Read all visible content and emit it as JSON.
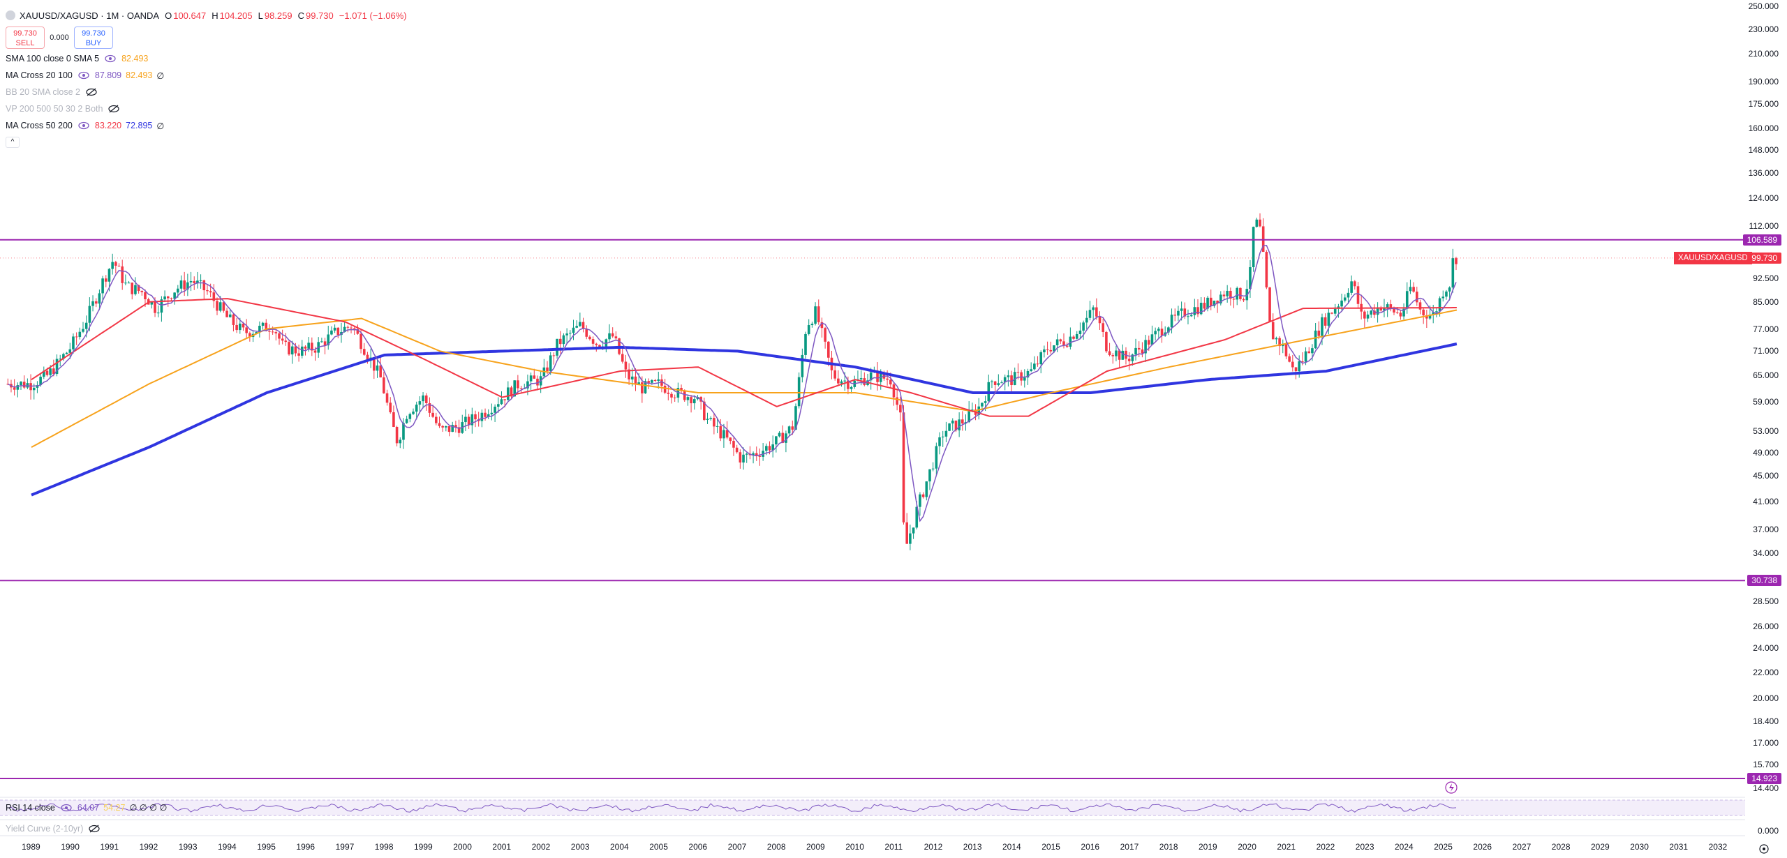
{
  "header": {
    "symbol": "XAUUSD/XAGUSD · 1M · OANDA",
    "o_label": "O",
    "o_value": "100.647",
    "h_label": "H",
    "h_value": "104.205",
    "l_label": "L",
    "l_value": "98.259",
    "c_label": "C",
    "c_value": "99.730",
    "change": "−1.071 (−1.06%)"
  },
  "trade": {
    "sell_price": "99.730",
    "sell_label": "SELL",
    "spread": "0.000",
    "buy_price": "99.730",
    "buy_label": "BUY"
  },
  "indicators": [
    {
      "name": "SMA 100 close 0 SMA 5",
      "v1": "82.493",
      "v1_color": "#f7a21b"
    },
    {
      "name": "MA Cross 20 100",
      "v1": "87.809",
      "v1_color": "#7e57c2",
      "v2": "82.493",
      "v2_color": "#f7a21b",
      "v3": "∅"
    },
    {
      "name": "BB 20 SMA close 2"
    },
    {
      "name": "VP 200 500 50 30 2 Both"
    },
    {
      "name": "MA Cross 50 200",
      "v1": "83.220",
      "v1_color": "#f23645",
      "v2": "72.895",
      "v2_color": "#2f35e0",
      "v3": "∅"
    }
  ],
  "rsi": {
    "name": "RSI 14 close",
    "v1": "64.07",
    "v2": "54.27",
    "rest": "∅ ∅ ∅ ∅"
  },
  "yield": {
    "name": "Yield Curve (2-10yr)"
  },
  "price_axis": [
    "250.000",
    "230.000",
    "210.000",
    "190.000",
    "175.000",
    "160.000",
    "148.000",
    "136.000",
    "124.000",
    "112.000",
    "92.500",
    "85.000",
    "77.000",
    "71.000",
    "65.000",
    "59.000",
    "53.000",
    "49.000",
    "45.000",
    "41.000",
    "37.000",
    "34.000",
    "28.500",
    "26.000",
    "24.000",
    "22.000",
    "20.000",
    "18.400",
    "17.000",
    "15.700",
    "14.400"
  ],
  "lower_axis": [
    "0.000"
  ],
  "time_axis": [
    "1989",
    "1990",
    "1991",
    "1992",
    "1993",
    "1994",
    "1995",
    "1996",
    "1997",
    "1998",
    "1999",
    "2000",
    "2001",
    "2002",
    "2003",
    "2004",
    "2005",
    "2006",
    "2007",
    "2008",
    "2009",
    "2010",
    "2011",
    "2012",
    "2013",
    "2014",
    "2015",
    "2016",
    "2017",
    "2018",
    "2019",
    "2020",
    "2021",
    "2022",
    "2023",
    "2024",
    "2025",
    "2026",
    "2027",
    "2028",
    "2029",
    "2030",
    "2031",
    "2032"
  ],
  "levels": [
    {
      "value": "106.589",
      "color": "#9c27b0"
    },
    {
      "value": "30.738",
      "color": "#9c27b0"
    },
    {
      "value": "14.923",
      "color": "#9c27b0"
    }
  ],
  "symbol_tag": {
    "label": "XAUUSD/XAGUSD",
    "value": "99.730",
    "color": "#f23645"
  },
  "colors": {
    "up": "#089981",
    "down": "#f23645",
    "sma5": "#7e57c2",
    "sma50": "#f23645",
    "sma100": "#f7a21b",
    "sma200": "#2f35e0",
    "hline": "#9c27b0"
  },
  "chart_data": {
    "type": "candlestick",
    "title": "XAUUSD/XAGUSD · 1M · OANDA",
    "ohlc_last": {
      "o": 100.647,
      "h": 104.205,
      "l": 98.259,
      "c": 99.73
    },
    "ylim": [
      14.4,
      250
    ],
    "y_scale": "log",
    "anchors": [
      [
        "1989-01",
        63
      ],
      [
        "1989-06",
        65
      ],
      [
        "1990-01",
        72
      ],
      [
        "1990-06",
        80
      ],
      [
        "1990-11",
        92
      ],
      [
        "1991-02",
        99
      ],
      [
        "1991-06",
        90
      ],
      [
        "1991-11",
        88
      ],
      [
        "1992-03",
        83
      ],
      [
        "1992-09",
        89
      ],
      [
        "1993-02",
        92
      ],
      [
        "1993-07",
        88
      ],
      [
        "1994-01",
        80
      ],
      [
        "1994-06",
        76
      ],
      [
        "1994-11",
        77
      ],
      [
        "1995-03",
        78
      ],
      [
        "1995-06",
        72
      ],
      [
        "1995-11",
        71
      ],
      [
        "1996-04",
        72
      ],
      [
        "1996-10",
        76
      ],
      [
        "1997-03",
        78
      ],
      [
        "1997-08",
        70
      ],
      [
        "1997-12",
        64
      ],
      [
        "1998-03",
        55
      ],
      [
        "1998-05",
        51
      ],
      [
        "1998-08",
        57
      ],
      [
        "1999-01",
        60
      ],
      [
        "1999-06",
        53
      ],
      [
        "1999-12",
        54
      ],
      [
        "2000-06",
        56
      ],
      [
        "2001-01",
        60
      ],
      [
        "2001-06",
        63
      ],
      [
        "2002-01",
        64
      ],
      [
        "2002-06",
        73
      ],
      [
        "2003-01",
        78
      ],
      [
        "2003-06",
        73
      ],
      [
        "2003-11",
        75
      ],
      [
        "2004-03",
        65
      ],
      [
        "2004-08",
        62
      ],
      [
        "2005-01",
        63
      ],
      [
        "2005-06",
        61
      ],
      [
        "2005-12",
        60
      ],
      [
        "2006-04",
        55
      ],
      [
        "2006-09",
        52
      ],
      [
        "2007-02",
        48
      ],
      [
        "2007-07",
        49
      ],
      [
        "2008-01",
        51
      ],
      [
        "2008-06",
        54
      ],
      [
        "2008-10",
        78
      ],
      [
        "2009-01",
        82
      ],
      [
        "2009-06",
        65
      ],
      [
        "2009-12",
        63
      ],
      [
        "2010-06",
        65
      ],
      [
        "2010-12",
        64
      ],
      [
        "2011-03",
        55
      ],
      [
        "2011-04",
        34
      ],
      [
        "2011-08",
        40
      ],
      [
        "2011-12",
        46
      ],
      [
        "2012-04",
        53
      ],
      [
        "2012-10",
        55
      ],
      [
        "2013-03",
        58
      ],
      [
        "2013-07",
        64
      ],
      [
        "2014-01",
        64
      ],
      [
        "2014-07",
        66
      ],
      [
        "2014-12",
        72
      ],
      [
        "2015-06",
        74
      ],
      [
        "2015-12",
        80
      ],
      [
        "2016-02",
        83
      ],
      [
        "2016-06",
        72
      ],
      [
        "2016-12",
        69
      ],
      [
        "2017-06",
        73
      ],
      [
        "2017-12",
        78
      ],
      [
        "2018-06",
        82
      ],
      [
        "2018-12",
        84
      ],
      [
        "2019-06",
        88
      ],
      [
        "2019-12",
        87
      ],
      [
        "2020-02",
        95
      ],
      [
        "2020-03",
        115
      ],
      [
        "2020-05",
        110
      ],
      [
        "2020-08",
        76
      ],
      [
        "2020-12",
        72
      ],
      [
        "2021-03",
        66
      ],
      [
        "2021-06",
        69
      ],
      [
        "2021-12",
        79
      ],
      [
        "2022-06",
        86
      ],
      [
        "2022-09",
        92
      ],
      [
        "2022-12",
        80
      ],
      [
        "2023-06",
        84
      ],
      [
        "2023-12",
        81
      ],
      [
        "2024-03",
        90
      ],
      [
        "2024-06",
        82
      ],
      [
        "2024-10",
        81
      ],
      [
        "2025-01",
        89
      ],
      [
        "2025-03",
        91
      ],
      [
        "2025-04",
        100.647
      ],
      [
        "2025-05",
        99.73
      ]
    ],
    "sma200": [
      [
        "1989-01",
        42
      ],
      [
        "1992-01",
        50
      ],
      [
        "1995-01",
        61
      ],
      [
        "1998-01",
        70
      ],
      [
        "2001-01",
        71
      ],
      [
        "2004-01",
        72
      ],
      [
        "2007-01",
        71
      ],
      [
        "2010-01",
        67
      ],
      [
        "2013-01",
        61
      ],
      [
        "2016-01",
        61
      ],
      [
        "2019-01",
        64
      ],
      [
        "2022-01",
        66
      ],
      [
        "2025-05",
        72.895
      ]
    ],
    "sma100": [
      [
        "1989-01",
        50
      ],
      [
        "1992-01",
        63
      ],
      [
        "1995-01",
        77
      ],
      [
        "1997-06",
        80
      ],
      [
        "1999-06",
        71
      ],
      [
        "2002-01",
        66
      ],
      [
        "2006-01",
        61
      ],
      [
        "2010-01",
        61
      ],
      [
        "2013-01",
        57
      ],
      [
        "2015-01",
        61
      ],
      [
        "2018-01",
        67
      ],
      [
        "2021-01",
        73
      ],
      [
        "2025-05",
        82.493
      ]
    ],
    "sma50": [
      [
        "1989-01",
        64
      ],
      [
        "1992-01",
        85
      ],
      [
        "1994-01",
        86
      ],
      [
        "1997-01",
        79
      ],
      [
        "1999-01",
        69
      ],
      [
        "2001-01",
        60
      ],
      [
        "2004-01",
        66
      ],
      [
        "2006-01",
        67
      ],
      [
        "2008-01",
        58
      ],
      [
        "2010-01",
        64
      ],
      [
        "2011-06",
        61
      ],
      [
        "2013-06",
        56
      ],
      [
        "2014-06",
        56
      ],
      [
        "2016-06",
        66
      ],
      [
        "2019-06",
        74
      ],
      [
        "2021-06",
        83
      ],
      [
        "2025-05",
        83.22
      ]
    ],
    "hlines": [
      106.589,
      30.738,
      14.923
    ],
    "rsi_last": 64.07
  }
}
